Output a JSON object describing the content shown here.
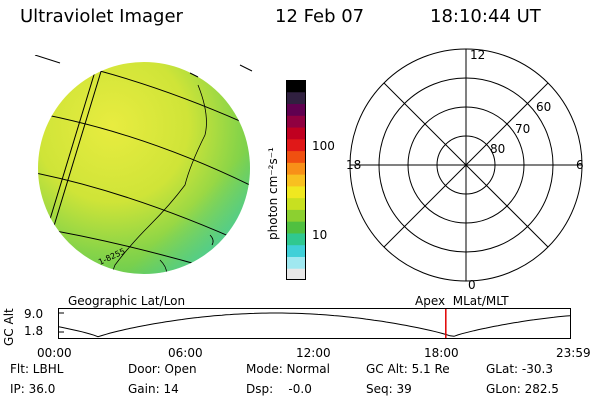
{
  "header": {
    "title": "Ultraviolet Imager",
    "date": "12 Feb 07",
    "time": "18:10:44 UT"
  },
  "colorbar": {
    "unit_label": "photon cm⁻²s⁻¹",
    "ticks": [
      {
        "label": "100",
        "value": 100
      },
      {
        "label": "10",
        "value": 10
      }
    ],
    "colors": [
      "#e8e8e8",
      "#a0e8f0",
      "#40d0d8",
      "#30c890",
      "#50c040",
      "#8cd030",
      "#c8e020",
      "#f0e820",
      "#f8c020",
      "#f89018",
      "#f05010",
      "#e01818",
      "#c00020",
      "#900040",
      "#600050",
      "#302040",
      "#000000"
    ]
  },
  "polar_plot": {
    "mlt_labels": [
      {
        "label": "12",
        "hour": 12
      },
      {
        "label": "18",
        "hour": 18
      },
      {
        "label": "6",
        "hour": 6
      },
      {
        "label": "0",
        "hour": 0
      }
    ],
    "lat_labels": [
      {
        "label": "60",
        "lat": 60
      },
      {
        "label": "70",
        "lat": 70
      },
      {
        "label": "80",
        "lat": 80
      }
    ]
  },
  "image_panel": {
    "grid_annotation": "1-8255",
    "colors": {
      "base": "#d8e838",
      "edge": "#58c858",
      "rim": "#40d0c8"
    }
  },
  "orbit_plot": {
    "left_label": "Geographic Lat/Lon",
    "right_label": "Apex  MLat/MLT",
    "axis_label": "GC Alt",
    "y_ticks": [
      "9.0",
      "1.8"
    ],
    "x_ticks": [
      "00:00",
      "06:00",
      "12:00",
      "18:00",
      "23:59"
    ],
    "marker_time_hours": 18.18,
    "marker_color": "#e00000"
  },
  "info": {
    "flt": "Flt: LBHL",
    "door": "Door: Open",
    "mode": "Mode: Normal",
    "gc_alt": "GC Alt: 5.1 Re",
    "glat": "GLat: -30.3",
    "ip": "IP: 36.0",
    "gain": "Gain: 14",
    "dsp": "Dsp:    -0.0",
    "seq": "Seq: 39",
    "glon": "GLon: 282.5"
  }
}
